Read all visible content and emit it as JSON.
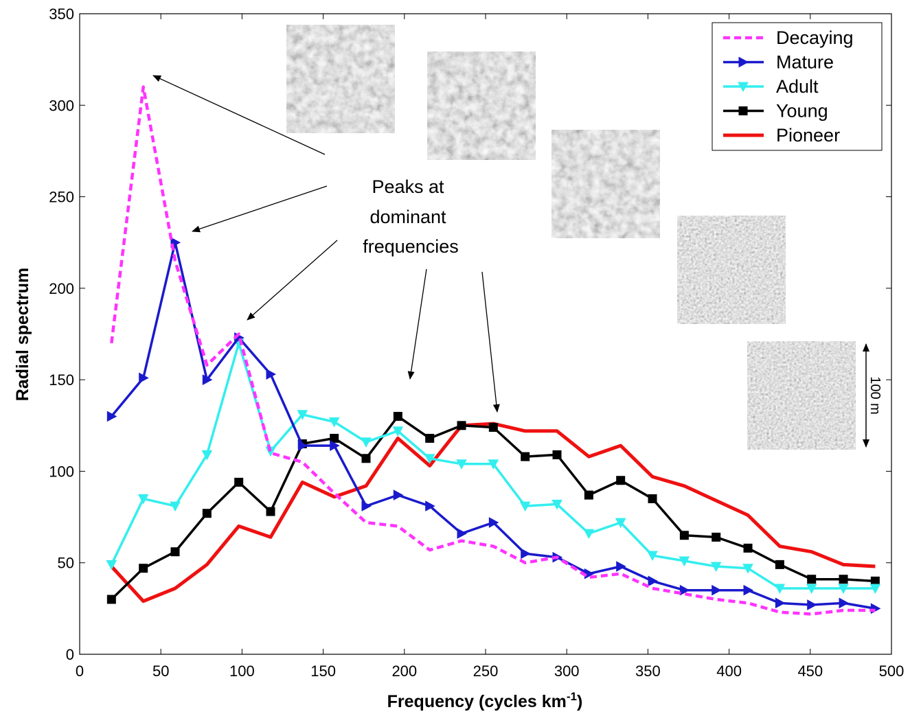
{
  "chart_data": {
    "type": "line",
    "xlabel": "Frequency (cycles km",
    "xlabel_sup": "-1",
    "xlabel_close": ")",
    "ylabel": "Radial spectrum",
    "xlim": [
      0,
      500
    ],
    "ylim": [
      0,
      350
    ],
    "xticks": [
      0,
      50,
      100,
      150,
      200,
      250,
      300,
      350,
      400,
      450,
      500
    ],
    "yticks": [
      0,
      50,
      100,
      150,
      200,
      250,
      300,
      350
    ],
    "grid": false,
    "legend_position": "top-right",
    "x": [
      19.6,
      39.2,
      58.8,
      78.4,
      98,
      117.6,
      137.2,
      156.8,
      176.4,
      196,
      215.6,
      235.2,
      254.8,
      274.4,
      294,
      313.6,
      333.2,
      352.8,
      372.4,
      392,
      411.6,
      431.2,
      450.8,
      470.4,
      490
    ],
    "series": [
      {
        "name": "Decaying",
        "color": "#ff33ff",
        "style": "dashed",
        "marker": "none",
        "values": [
          170,
          310,
          215,
          158,
          175,
          110,
          105,
          88,
          72,
          70,
          57,
          62,
          59,
          50,
          53,
          42,
          44,
          36,
          33,
          30,
          28,
          23,
          22,
          24,
          24
        ]
      },
      {
        "name": "Mature",
        "color": "#1a1acc",
        "style": "solid",
        "marker": "triangle-right",
        "values": [
          130,
          151,
          225,
          150,
          173,
          153,
          114,
          114,
          81,
          87,
          81,
          66,
          72,
          55,
          53,
          44,
          48,
          40,
          35,
          35,
          35,
          28,
          27,
          28,
          25
        ]
      },
      {
        "name": "Adult",
        "color": "#33eeee",
        "style": "solid",
        "marker": "triangle-down",
        "values": [
          49,
          85,
          81,
          109,
          170,
          111,
          131,
          127,
          116,
          122,
          107,
          104,
          104,
          81,
          82,
          66,
          72,
          54,
          51,
          48,
          47,
          36,
          36,
          36,
          36
        ]
      },
      {
        "name": "Young",
        "color": "#000000",
        "style": "solid",
        "marker": "square",
        "values": [
          30,
          47,
          56,
          77,
          94,
          78,
          115,
          118,
          107,
          130,
          118,
          125,
          124,
          108,
          109,
          87,
          95,
          85,
          65,
          64,
          58,
          49,
          41,
          41,
          40
        ]
      },
      {
        "name": "Pioneer",
        "color": "#ee1111",
        "style": "solid",
        "marker": "none",
        "values": [
          48,
          29,
          36,
          49,
          70,
          64,
          94,
          86,
          92,
          118,
          103,
          125,
          126,
          122,
          122,
          108,
          114,
          97,
          92,
          84,
          76,
          59,
          56,
          49,
          48
        ]
      }
    ],
    "annotations": {
      "peaks_label": [
        "Peaks at",
        "dominant",
        "frequencies"
      ],
      "scale_label": "100 m"
    }
  }
}
